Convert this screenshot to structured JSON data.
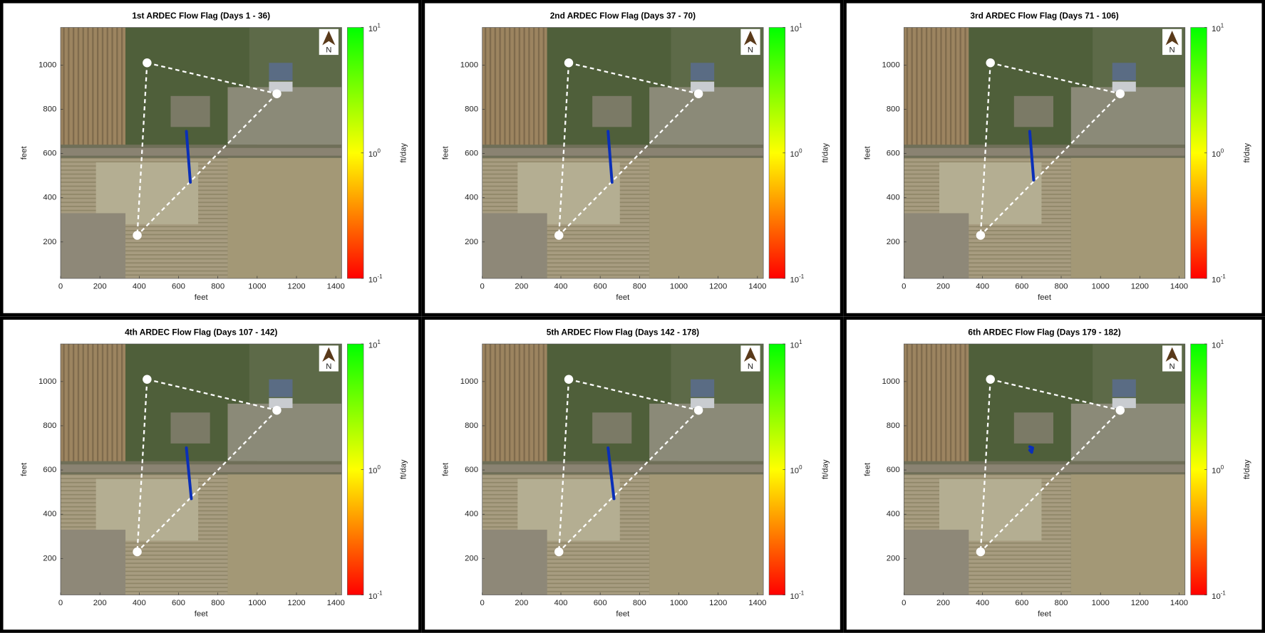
{
  "chart_data": [
    {
      "type": "map",
      "title": "1st ARDEC Flow Flag (Days 1 - 36)",
      "xlabel": "feet",
      "ylabel": "feet",
      "north_label": "N",
      "xlim": [
        0,
        1430
      ],
      "ylim": [
        35,
        1170
      ],
      "xticks": [
        0,
        200,
        400,
        600,
        800,
        1000,
        1200,
        1400
      ],
      "yticks": [
        200,
        400,
        600,
        800,
        1000
      ],
      "wells": {
        "x": [
          440,
          1100,
          390
        ],
        "y": [
          1010,
          870,
          230
        ],
        "color": "#ffffff"
      },
      "flag": {
        "x": [
          640,
          660
        ],
        "y": [
          700,
          470
        ],
        "color": "#0a2fb8"
      },
      "colorbar": {
        "label": "ft/day",
        "scale": "log",
        "lim": [
          0.1,
          10
        ],
        "colors": [
          "#ff0000",
          "#ffff00",
          "#00ff00"
        ],
        "ticks": [
          {
            "value": 0.1,
            "label": "10^-1"
          },
          {
            "value": 1,
            "label": "10^0"
          },
          {
            "value": 10,
            "label": "10^1"
          }
        ]
      }
    },
    {
      "type": "map",
      "title": "2nd ARDEC Flow Flag (Days 37 - 70)",
      "xlabel": "feet",
      "ylabel": "feet",
      "north_label": "N",
      "xlim": [
        0,
        1430
      ],
      "ylim": [
        35,
        1170
      ],
      "xticks": [
        0,
        200,
        400,
        600,
        800,
        1000,
        1200,
        1400
      ],
      "yticks": [
        200,
        400,
        600,
        800,
        1000
      ],
      "wells": {
        "x": [
          440,
          1100,
          390
        ],
        "y": [
          1010,
          870,
          230
        ],
        "color": "#ffffff"
      },
      "flag": {
        "x": [
          640,
          660
        ],
        "y": [
          700,
          470
        ],
        "color": "#0a2fb8"
      },
      "colorbar": {
        "label": "ft/day",
        "scale": "log",
        "lim": [
          0.1,
          10
        ],
        "colors": [
          "#ff0000",
          "#ffff00",
          "#00ff00"
        ],
        "ticks": [
          {
            "value": 0.1,
            "label": "10^-1"
          },
          {
            "value": 1,
            "label": "10^0"
          },
          {
            "value": 10,
            "label": "10^1"
          }
        ]
      }
    },
    {
      "type": "map",
      "title": "3rd ARDEC Flow Flag (Days 71 - 106)",
      "xlabel": "feet",
      "ylabel": "feet",
      "north_label": "N",
      "xlim": [
        0,
        1430
      ],
      "ylim": [
        35,
        1170
      ],
      "xticks": [
        0,
        200,
        400,
        600,
        800,
        1000,
        1200,
        1400
      ],
      "yticks": [
        200,
        400,
        600,
        800,
        1000
      ],
      "wells": {
        "x": [
          440,
          1100,
          390
        ],
        "y": [
          1010,
          870,
          230
        ],
        "color": "#ffffff"
      },
      "flag": {
        "x": [
          640,
          660
        ],
        "y": [
          700,
          480
        ],
        "color": "#0a2fb8"
      },
      "colorbar": {
        "label": "ft/day",
        "scale": "log",
        "lim": [
          0.1,
          10
        ],
        "colors": [
          "#ff0000",
          "#ffff00",
          "#00ff00"
        ],
        "ticks": [
          {
            "value": 0.1,
            "label": "10^-1"
          },
          {
            "value": 1,
            "label": "10^0"
          },
          {
            "value": 10,
            "label": "10^1"
          }
        ]
      }
    },
    {
      "type": "map",
      "title": "4th ARDEC Flow Flag (Days 107 - 142)",
      "xlabel": "feet",
      "ylabel": "feet",
      "north_label": "N",
      "xlim": [
        0,
        1430
      ],
      "ylim": [
        35,
        1170
      ],
      "xticks": [
        0,
        200,
        400,
        600,
        800,
        1000,
        1200,
        1400
      ],
      "yticks": [
        200,
        400,
        600,
        800,
        1000
      ],
      "wells": {
        "x": [
          440,
          1100,
          390
        ],
        "y": [
          1010,
          870,
          230
        ],
        "color": "#ffffff"
      },
      "flag": {
        "x": [
          640,
          665
        ],
        "y": [
          700,
          470
        ],
        "color": "#0a2fb8"
      },
      "colorbar": {
        "label": "ft/day",
        "scale": "log",
        "lim": [
          0.1,
          10
        ],
        "colors": [
          "#ff0000",
          "#ffff00",
          "#00ff00"
        ],
        "ticks": [
          {
            "value": 0.1,
            "label": "10^-1"
          },
          {
            "value": 1,
            "label": "10^0"
          },
          {
            "value": 10,
            "label": "10^1"
          }
        ]
      }
    },
    {
      "type": "map",
      "title": "5th ARDEC Flow Flag (Days 142 - 178)",
      "xlabel": "feet",
      "ylabel": "feet",
      "north_label": "N",
      "xlim": [
        0,
        1430
      ],
      "ylim": [
        35,
        1170
      ],
      "xticks": [
        0,
        200,
        400,
        600,
        800,
        1000,
        1200,
        1400
      ],
      "yticks": [
        200,
        400,
        600,
        800,
        1000
      ],
      "wells": {
        "x": [
          440,
          1100,
          390
        ],
        "y": [
          1010,
          870,
          230
        ],
        "color": "#ffffff"
      },
      "flag": {
        "x": [
          640,
          670
        ],
        "y": [
          700,
          470
        ],
        "color": "#0a2fb8"
      },
      "colorbar": {
        "label": "ft/day",
        "scale": "log",
        "lim": [
          0.1,
          10
        ],
        "colors": [
          "#ff0000",
          "#ffff00",
          "#00ff00"
        ],
        "ticks": [
          {
            "value": 0.1,
            "label": "10^-1"
          },
          {
            "value": 1,
            "label": "10^0"
          },
          {
            "value": 10,
            "label": "10^1"
          }
        ]
      }
    },
    {
      "type": "map",
      "title": "6th ARDEC Flow Flag (Days 179 - 182)",
      "xlabel": "feet",
      "ylabel": "feet",
      "north_label": "N",
      "xlim": [
        0,
        1430
      ],
      "ylim": [
        35,
        1170
      ],
      "xticks": [
        0,
        200,
        400,
        600,
        800,
        1000,
        1200,
        1400
      ],
      "yticks": [
        200,
        400,
        600,
        800,
        1000
      ],
      "wells": {
        "x": [
          440,
          1100,
          390
        ],
        "y": [
          1010,
          870,
          230
        ],
        "color": "#ffffff"
      },
      "flag": {
        "x": [
          640,
          655,
          650,
          640
        ],
        "y": [
          705,
          700,
          680,
          690
        ],
        "color": "#0a2fb8"
      },
      "colorbar": {
        "label": "ft/day",
        "scale": "log",
        "lim": [
          0.1,
          10
        ],
        "colors": [
          "#ff0000",
          "#ffff00",
          "#00ff00"
        ],
        "ticks": [
          {
            "value": 0.1,
            "label": "10^-1"
          },
          {
            "value": 1,
            "label": "10^0"
          },
          {
            "value": 10,
            "label": "10^1"
          }
        ]
      }
    }
  ]
}
